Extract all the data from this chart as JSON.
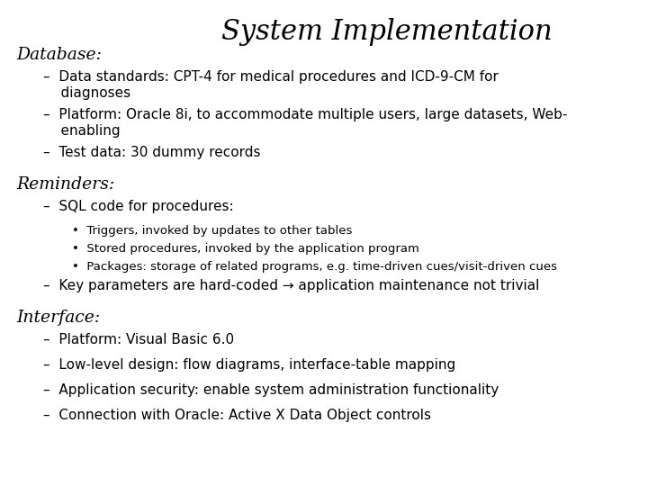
{
  "title": "System Implementation",
  "background_color": "#ffffff",
  "title_fontsize": 22,
  "title_style": "italic",
  "title_family": "serif",
  "section_fontsize": 13.5,
  "bullet_fontsize": 11,
  "sub_bullet_fontsize": 9.5,
  "sections": [
    {
      "label": "Database",
      "bullets": [
        {
          "text": "–  Data standards: CPT-4 for medical procedures and ICD-9-CM for\n    diagnoses",
          "sub_bullets": []
        },
        {
          "text": "–  Platform: Oracle 8i, to accommodate multiple users, large datasets, Web-\n    enabling",
          "sub_bullets": []
        },
        {
          "text": "–  Test data: 30 dummy records",
          "sub_bullets": []
        }
      ]
    },
    {
      "label": "Reminders",
      "bullets": [
        {
          "text": "–  SQL code for procedures:",
          "sub_bullets": [
            "•  Triggers, invoked by updates to other tables",
            "•  Stored procedures, invoked by the application program",
            "•  Packages: storage of related programs, e.g. time-driven cues/visit-driven cues"
          ]
        },
        {
          "text": "–  Key parameters are hard-coded → application maintenance not trivial",
          "sub_bullets": []
        }
      ]
    },
    {
      "label": "Interface",
      "bullets": [
        {
          "text": "–  Platform: Visual Basic 6.0",
          "sub_bullets": []
        },
        {
          "text": "–  Low-level design: flow diagrams, interface-table mapping",
          "sub_bullets": []
        },
        {
          "text": "–  Application security: enable system administration functionality",
          "sub_bullets": []
        },
        {
          "text": "–  Connection with Oracle: Active X Data Object controls",
          "sub_bullets": []
        }
      ]
    }
  ]
}
